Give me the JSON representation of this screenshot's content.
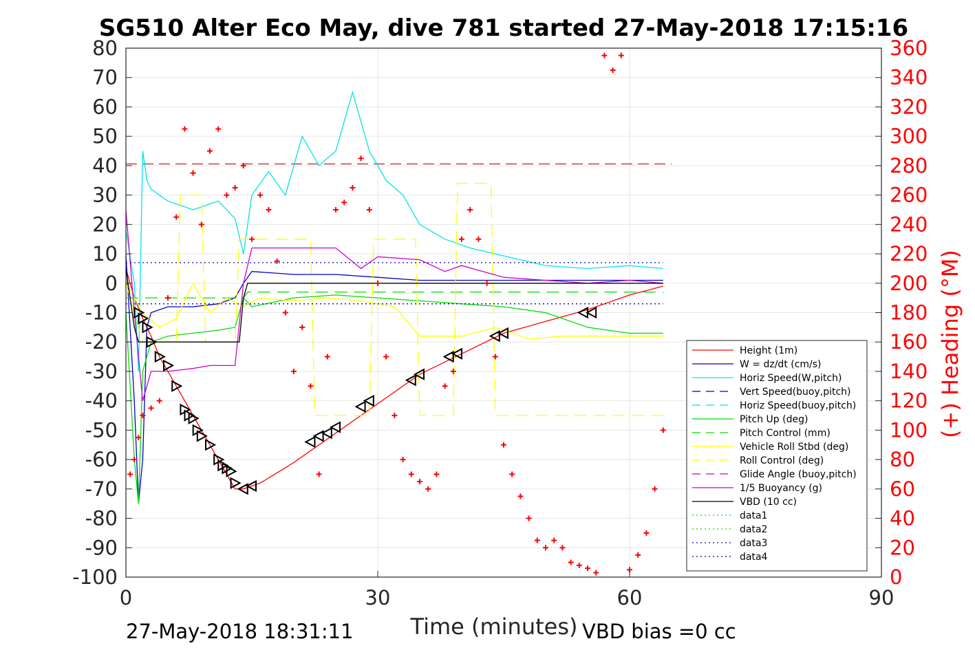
{
  "chart_data": {
    "type": "line",
    "title": "SG510 Alter Eco May, dive 781 started 27-May-2018 17:15:16",
    "xlabel": "Time (minutes)",
    "ylabel_right": "(+) Heading (°M)",
    "xlim": [
      0,
      90
    ],
    "ylim": [
      -100,
      80
    ],
    "ylim_right": [
      0,
      360
    ],
    "xticks": [
      0,
      30,
      60,
      90
    ],
    "yticks": [
      80,
      70,
      60,
      50,
      40,
      30,
      20,
      10,
      0,
      -10,
      -20,
      -30,
      -40,
      -50,
      -60,
      -70,
      -80,
      -90,
      -100
    ],
    "yticks_right": [
      360,
      340,
      320,
      300,
      280,
      260,
      240,
      220,
      200,
      180,
      160,
      140,
      120,
      100,
      80,
      60,
      40,
      20,
      0
    ],
    "grid": true,
    "legend_position": "lower-right",
    "footer_left": "27-May-2018 18:31:11",
    "footer_right": "VBD bias =0 cc",
    "series": [
      {
        "name": "Height (1m)",
        "color": "#ff0000",
        "style": "solid",
        "x": [
          0,
          1,
          2,
          3,
          4,
          6,
          8,
          10,
          12,
          13,
          14,
          16,
          20,
          25,
          30,
          35,
          40,
          45,
          50,
          55,
          60,
          64
        ],
        "y": [
          5,
          -5,
          -12,
          -18,
          -25,
          -35,
          -45,
          -55,
          -65,
          -70,
          -70,
          -68,
          -61,
          -51,
          -41,
          -31,
          -24,
          -17,
          -13,
          -9,
          -4,
          -1
        ]
      },
      {
        "name": "W = dz/dt (cm/s)",
        "color": "#0000cc",
        "style": "solid",
        "x": [
          0,
          1,
          1.5,
          2,
          2.5,
          3,
          5,
          8,
          11,
          13,
          14,
          15,
          20,
          25,
          30,
          35,
          40,
          45,
          50,
          55,
          60,
          64
        ],
        "y": [
          10,
          -40,
          -75,
          -60,
          -15,
          -10,
          -8,
          -8,
          -7,
          -5,
          0,
          4,
          3,
          3,
          2,
          1,
          1,
          1,
          1,
          1,
          1,
          1
        ]
      },
      {
        "name": "Horiz Speed(W,pitch)",
        "color": "#00e5e5",
        "style": "solid",
        "x": [
          0,
          1,
          1.5,
          2,
          2.5,
          3,
          5,
          8,
          11,
          13,
          14,
          15,
          17,
          19,
          21,
          23,
          25,
          27,
          29,
          31,
          33,
          35,
          38,
          41,
          44,
          47,
          50,
          55,
          60,
          64
        ],
        "y": [
          18,
          0,
          -30,
          45,
          35,
          32,
          28,
          25,
          28,
          22,
          10,
          30,
          38,
          30,
          50,
          40,
          45,
          65,
          45,
          35,
          30,
          20,
          15,
          12,
          10,
          8,
          6,
          5,
          6,
          5
        ]
      },
      {
        "name": "Vert Speed(buoy,pitch)",
        "color": "#0000cc",
        "style": "dashed",
        "x": [],
        "y": []
      },
      {
        "name": "Horiz Speed(buoy,pitch)",
        "color": "#00e5e5",
        "style": "dashed",
        "x": [],
        "y": []
      },
      {
        "name": "Pitch Up (deg)",
        "color": "#00dd00",
        "style": "solid",
        "x": [
          0,
          1,
          1.5,
          2,
          3,
          5,
          8,
          11,
          13,
          14,
          15,
          20,
          25,
          30,
          35,
          40,
          45,
          50,
          55,
          60,
          64
        ],
        "y": [
          -10,
          -60,
          -75,
          -30,
          -20,
          -18,
          -17,
          -16,
          -15,
          -5,
          -8,
          -5,
          -4,
          -5,
          -6,
          -7,
          -8,
          -10,
          -15,
          -17,
          -17
        ]
      },
      {
        "name": "Pitch Control (mm)",
        "color": "#00dd00",
        "style": "dashed",
        "x": [
          0,
          14,
          14.5,
          64
        ],
        "y": [
          -5,
          -5,
          -3,
          -3
        ]
      },
      {
        "name": "Vehicle Roll Stbd (deg)",
        "color": "#ffff00",
        "style": "solid",
        "x": [
          0,
          2,
          4,
          6,
          8,
          10,
          12,
          14,
          16,
          20,
          24,
          28,
          32,
          35,
          40,
          44,
          48,
          52,
          56,
          60,
          64
        ],
        "y": [
          0,
          -10,
          -15,
          -12,
          0,
          -10,
          -5,
          -8,
          -5,
          -6,
          -5,
          -6,
          -8,
          -18,
          -18,
          -15,
          -19,
          -18,
          -18,
          -18,
          -18
        ]
      },
      {
        "name": "Roll Control (deg)",
        "color": "#ffff00",
        "style": "dashed",
        "x": [
          0,
          2,
          6,
          6.5,
          9,
          9.5,
          13,
          13.5,
          22,
          22.5,
          29,
          29.5,
          34.5,
          35,
          39,
          39.5,
          43.5,
          44,
          54,
          54.5,
          64
        ],
        "y": [
          0,
          -20,
          -20,
          30,
          30,
          -20,
          -20,
          15,
          15,
          -45,
          -45,
          15,
          15,
          -45,
          -45,
          34,
          34,
          -45,
          -45,
          -45,
          -45
        ]
      },
      {
        "name": "Glide Angle (buoy,pitch)",
        "color": "#cc00cc",
        "style": "dashed",
        "x": [],
        "y": []
      },
      {
        "name": "1/5 Buoyancy (g)",
        "color": "#cc00cc",
        "style": "solid",
        "x": [
          0,
          1,
          2,
          3,
          4,
          5,
          8,
          10,
          13,
          14,
          15,
          20,
          25,
          28,
          30,
          35,
          38,
          40,
          45,
          50,
          55,
          60,
          64
        ],
        "y": [
          25,
          -10,
          -40,
          -30,
          -30,
          -30,
          -29,
          -28,
          -28,
          0,
          12,
          12,
          12,
          5,
          9,
          8,
          4,
          6,
          2,
          1,
          0,
          1,
          0
        ]
      },
      {
        "name": "VBD (10 cc)",
        "color": "#000000",
        "style": "solid",
        "x": [
          0,
          1,
          1.5,
          2,
          13.5,
          14,
          14.5,
          64
        ],
        "y": [
          5,
          -15,
          -20,
          -20,
          -20,
          -5,
          0,
          0
        ]
      },
      {
        "name": "data1",
        "color": "#00dd00",
        "style": "dotted",
        "x": [],
        "y": []
      },
      {
        "name": "data2",
        "color": "#00dd00",
        "style": "dotted",
        "x": [],
        "y": []
      },
      {
        "name": "data3",
        "color": "#0000cc",
        "style": "dotted",
        "x": [
          0,
          64
        ],
        "y": [
          7,
          7
        ]
      },
      {
        "name": "data4",
        "color": "#0000cc",
        "style": "dotted",
        "x": [
          0,
          64
        ],
        "y": [
          -7,
          -7
        ]
      }
    ],
    "reference_line": {
      "y": 40.6,
      "x": [
        0,
        65
      ],
      "color": "#c00000",
      "style": "dashed"
    },
    "heading": {
      "name": "(+) Heading (°M)",
      "color": "#ff0000",
      "axis": "right",
      "x": [
        0.5,
        1,
        1.5,
        2,
        3,
        4,
        5,
        6,
        7,
        8,
        9,
        10,
        11,
        12,
        13,
        14,
        15,
        16,
        17,
        18,
        19,
        20,
        21,
        22,
        23,
        24,
        25,
        26,
        27,
        28,
        29,
        30,
        31,
        32,
        33,
        34,
        35,
        36,
        37,
        38,
        39,
        40,
        41,
        42,
        43,
        44,
        45,
        46,
        47,
        48,
        49,
        50,
        51,
        52,
        53,
        54,
        55,
        56,
        57,
        58,
        59,
        60,
        61,
        62,
        63,
        64
      ],
      "y": [
        70,
        80,
        95,
        110,
        115,
        120,
        190,
        245,
        305,
        275,
        240,
        290,
        305,
        260,
        265,
        280,
        230,
        260,
        250,
        215,
        180,
        140,
        170,
        130,
        70,
        150,
        250,
        255,
        265,
        285,
        250,
        200,
        150,
        110,
        80,
        70,
        65,
        60,
        70,
        130,
        140,
        230,
        250,
        230,
        200,
        150,
        90,
        70,
        55,
        40,
        25,
        20,
        25,
        20,
        10,
        8,
        6,
        3,
        355,
        345,
        355,
        5,
        15,
        30,
        60,
        100
      ]
    },
    "markers": {
      "name": "waypoints",
      "shape": "triangle",
      "color": "#000000",
      "x": [
        1.5,
        2,
        2.5,
        3,
        4,
        5,
        6,
        7,
        7.5,
        8,
        8.5,
        9,
        10,
        11,
        11.5,
        12,
        12.5,
        13,
        14,
        15,
        22,
        23,
        24,
        25,
        28,
        29,
        34,
        35,
        38.5,
        39.5,
        44,
        45,
        54.5,
        55.5
      ],
      "y": [
        -10,
        -12,
        -15,
        -20,
        -25,
        -28,
        -35,
        -43,
        -45,
        -46,
        -50,
        -52,
        -55,
        -60,
        -62,
        -63,
        -64,
        -68,
        -70,
        -69,
        -54,
        -52,
        -51,
        -49,
        -42,
        -40,
        -33,
        -31,
        -25,
        -24,
        -18,
        -17,
        -10,
        -10
      ]
    }
  }
}
